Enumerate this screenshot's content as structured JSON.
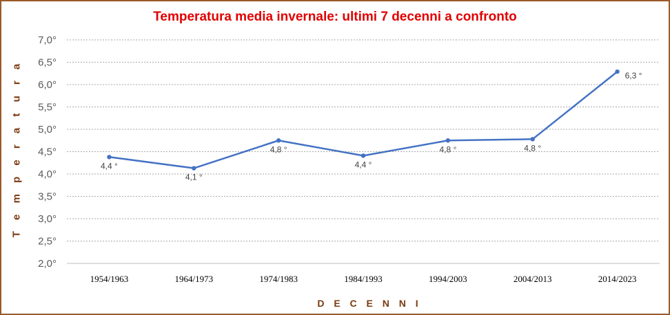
{
  "chart_data": {
    "type": "line",
    "title": "Temperatura media invernale:  ultimi 7 decenni a confronto",
    "xlabel": "D E C E N N I",
    "ylabel": "T e m p e r a t u r a",
    "categories": [
      "1954/1963",
      "1964/1973",
      "1974/1983",
      "1984/1993",
      "1994/2003",
      "2004/2013",
      "2014/2023"
    ],
    "series": [
      {
        "values": [
          4.38,
          4.13,
          4.75,
          4.41,
          4.75,
          4.78,
          6.29
        ],
        "data_labels": [
          "4,4 °",
          "4,1 °",
          "4,8 °",
          "4,4 °",
          "4,8 °",
          "4,8 °",
          "6,3 °"
        ]
      }
    ],
    "ylim": [
      2.0,
      7.0
    ],
    "yticks": [
      2.0,
      2.5,
      3.0,
      3.5,
      4.0,
      4.5,
      5.0,
      5.5,
      6.0,
      6.5,
      7.0
    ],
    "ytick_labels": [
      "2,0°",
      "2,5°",
      "3,0°",
      "3,5°",
      "4,0°",
      "4,5°",
      "5,0°",
      "5,5°",
      "6,0°",
      "6,5°",
      "7,0°"
    ],
    "grid": true,
    "legend": false,
    "colors": {
      "line": "#4472c4",
      "title": "#e00000",
      "axis_title": "#7a3a10",
      "frame": "#9a5a2a",
      "grid": "#a6a6a6"
    }
  }
}
